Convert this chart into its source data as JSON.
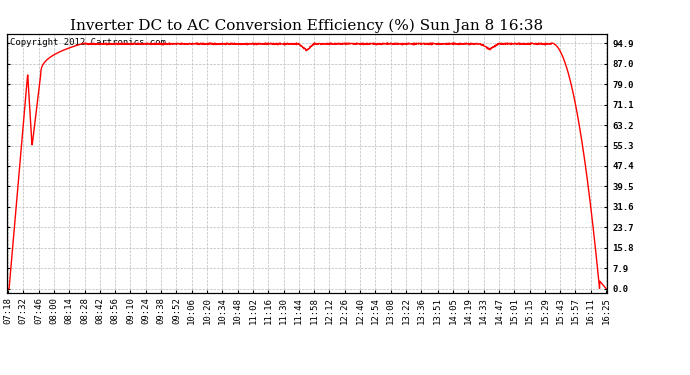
{
  "title": "Inverter DC to AC Conversion Efficiency (%) Sun Jan 8 16:38",
  "copyright_text": "Copyright 2012 Cartronics.com",
  "line_color": "#ff0000",
  "background_color": "#ffffff",
  "plot_bg_color": "#ffffff",
  "grid_color": "#bbbbbb",
  "ytick_labels": [
    "0.0",
    "7.9",
    "15.8",
    "23.7",
    "31.6",
    "39.5",
    "47.4",
    "55.3",
    "63.2",
    "71.1",
    "79.0",
    "87.0",
    "94.9"
  ],
  "ytick_values": [
    0.0,
    7.9,
    15.8,
    23.7,
    31.6,
    39.5,
    47.4,
    55.3,
    63.2,
    71.1,
    79.0,
    87.0,
    94.9
  ],
  "ylim": [
    -1.5,
    98.5
  ],
  "x_labels": [
    "07:18",
    "07:32",
    "07:46",
    "08:00",
    "08:14",
    "08:28",
    "08:42",
    "08:56",
    "09:10",
    "09:24",
    "09:38",
    "09:52",
    "10:06",
    "10:20",
    "10:34",
    "10:48",
    "11:02",
    "11:16",
    "11:30",
    "11:44",
    "11:58",
    "12:12",
    "12:26",
    "12:40",
    "12:54",
    "13:08",
    "13:22",
    "13:36",
    "13:51",
    "14:05",
    "14:19",
    "14:33",
    "14:47",
    "15:01",
    "15:15",
    "15:29",
    "15:43",
    "15:57",
    "16:11",
    "16:25"
  ],
  "title_fontsize": 11,
  "copyright_fontsize": 6.5,
  "tick_fontsize": 6.5,
  "line_width": 1.0
}
